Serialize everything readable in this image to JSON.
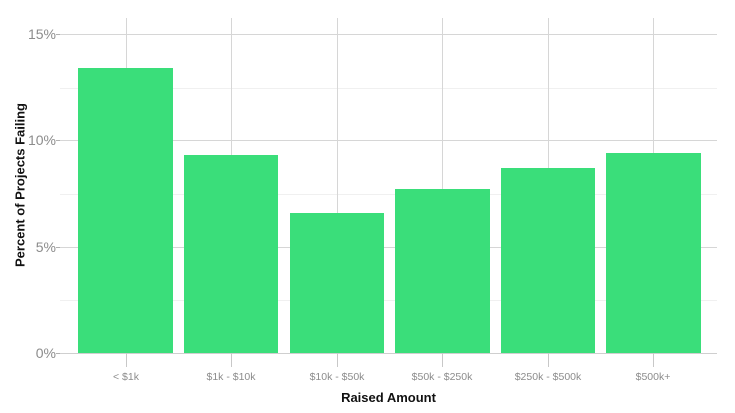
{
  "chart_data": {
    "type": "bar",
    "title": "",
    "xlabel": "Raised Amount",
    "ylabel": "Percent of Projects Failing",
    "categories": [
      "< $1k",
      "$1k - $10k",
      "$10k - $50k",
      "$50k - $250k",
      "$250k - $500k",
      "$500k+"
    ],
    "values": [
      13.4,
      9.3,
      6.6,
      7.7,
      8.7,
      9.4
    ],
    "ylim": [
      0,
      15.8
    ],
    "yticks": [
      "0%",
      "5%",
      "10%",
      "15%"
    ],
    "ytick_values": [
      0,
      5,
      10,
      15
    ],
    "grid": true,
    "bar_color": "#3ade7a"
  },
  "axes": {
    "xlabel": "Raised Amount",
    "ylabel": "Percent of Projects Failing",
    "yticks": [
      "0%",
      "5%",
      "10%",
      "15%"
    ]
  },
  "categories": [
    "< $1k",
    "$1k - $10k",
    "$10k - $50k",
    "$50k - $250k",
    "$250k - $500k",
    "$500k+"
  ]
}
